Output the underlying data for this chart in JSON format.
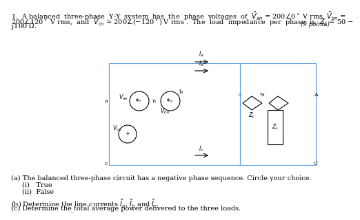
{
  "bg_color": "#ffffff",
  "fs_main": 7.0,
  "fs_small": 6.2,
  "fs_label": 5.8,
  "title_line1": "1.  A balanced  three-phase  Y-Y  system  has  the  phase  voltages  of",
  "title_line1_math": "$\\tilde{V}_{an}$ = 200$\\angle$0$^\\circ$ V rms, $\\tilde{V}_{bn}$ =",
  "title_line2": "200$\\angle$120$^\\circ$ V rms,  and  $\\tilde{V}_{cn}$ = 200$\\angle$($-$120$^\\circ$) V rms .  The  load  impedance  per  phase  is  $Z_L$ = 50 $-$",
  "title_line3": "j100 $\\Omega$.",
  "title_points": "(9 points)",
  "part_a": "(a) The balanced three-phase circuit has a negative phase sequence. Circle your choice.",
  "part_a_i": "(i)   True",
  "part_a_ii": "(ii)  False",
  "part_b": "(b) Determine the line currents $\\tilde{I}_a$, $\\tilde{I}_b$ and $\\tilde{I}_c$.",
  "part_c": "(c) Determine the total average power delivered to the three loads."
}
